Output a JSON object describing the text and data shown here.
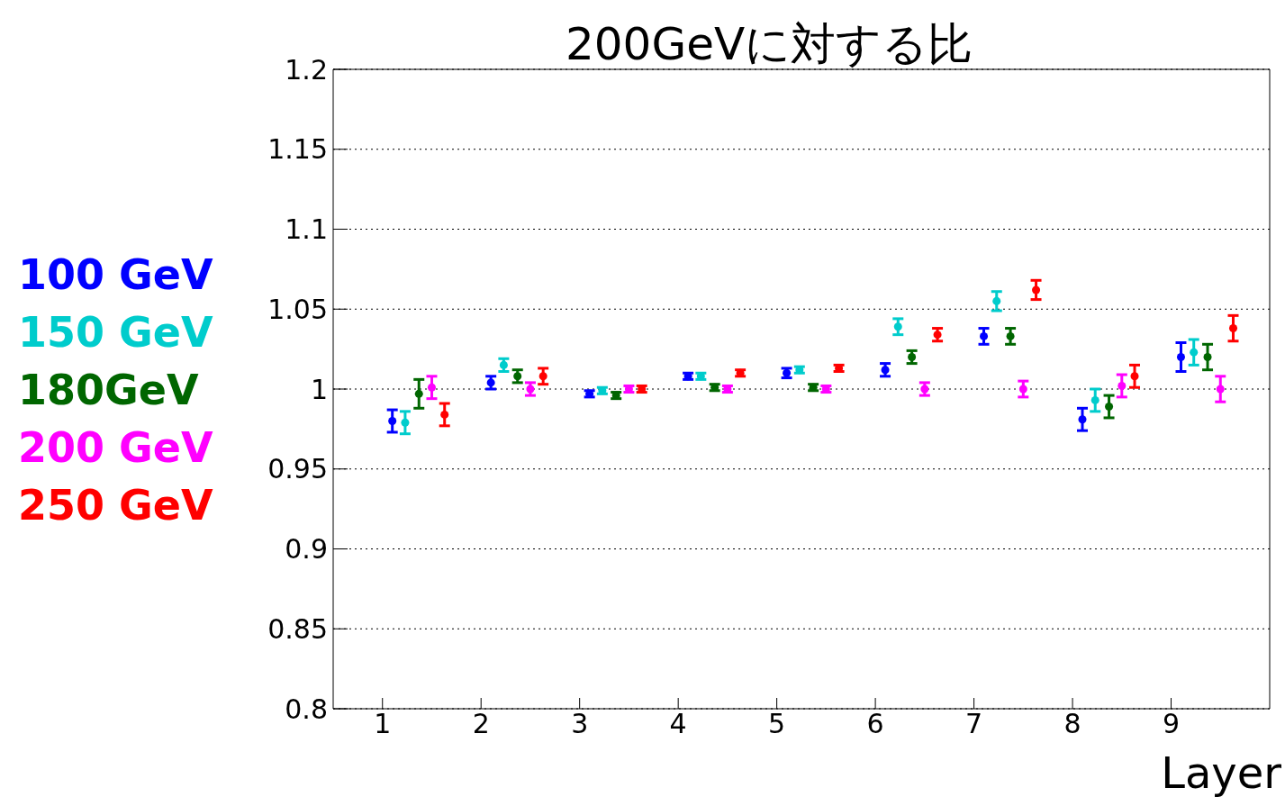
{
  "chart_data": {
    "type": "scatter",
    "title": "200GeVに対する比",
    "xlabel": "Layer",
    "xlim": [
      0.5,
      10
    ],
    "xticks": [
      1,
      2,
      3,
      4,
      5,
      6,
      7,
      8,
      9
    ],
    "ylim": [
      0.8,
      1.2
    ],
    "yticks": [
      0.8,
      0.85,
      0.9,
      0.95,
      1,
      1.05,
      1.1,
      1.15,
      1.2
    ],
    "grid": "y",
    "marker": "circle",
    "series": [
      {
        "name": "100 GeV",
        "color": "#0000ff",
        "x": [
          1.1,
          2.1,
          3.1,
          4.1,
          5.1,
          6.1,
          7.1,
          8.1,
          9.1
        ],
        "values": [
          0.98,
          1.004,
          0.997,
          1.008,
          1.01,
          1.012,
          1.033,
          0.981,
          1.02
        ],
        "errors": [
          0.007,
          0.004,
          0.002,
          0.002,
          0.003,
          0.004,
          0.005,
          0.007,
          0.009
        ]
      },
      {
        "name": "150 GeV",
        "color": "#00cccc",
        "x": [
          1.23,
          2.23,
          3.23,
          4.23,
          5.23,
          6.23,
          7.23,
          8.23,
          9.23
        ],
        "values": [
          0.979,
          1.015,
          0.999,
          1.008,
          1.012,
          1.039,
          1.055,
          0.993,
          1.023
        ],
        "errors": [
          0.007,
          0.004,
          0.002,
          0.002,
          0.002,
          0.005,
          0.006,
          0.007,
          0.008
        ]
      },
      {
        "name": "180GeV",
        "color": "#006600",
        "x": [
          1.37,
          2.37,
          3.37,
          4.37,
          5.37,
          6.37,
          7.37,
          8.37,
          9.37
        ],
        "values": [
          0.997,
          1.008,
          0.996,
          1.001,
          1.001,
          1.02,
          1.033,
          0.989,
          1.02
        ],
        "errors": [
          0.009,
          0.004,
          0.002,
          0.002,
          0.002,
          0.004,
          0.005,
          0.007,
          0.008
        ]
      },
      {
        "name": "200 GeV",
        "color": "#ff00ff",
        "x": [
          1.5,
          2.5,
          3.5,
          4.5,
          5.5,
          6.5,
          7.5,
          8.5,
          9.5
        ],
        "values": [
          1.001,
          1.0,
          1.0,
          1.0,
          1.0,
          1.0,
          1.0,
          1.002,
          1.0
        ],
        "errors": [
          0.007,
          0.004,
          0.002,
          0.002,
          0.002,
          0.004,
          0.005,
          0.007,
          0.008
        ]
      },
      {
        "name": "250 GeV",
        "color": "#ff0000",
        "x": [
          1.63,
          2.63,
          3.63,
          4.63,
          5.63,
          6.63,
          7.63,
          8.63,
          9.63
        ],
        "values": [
          0.984,
          1.008,
          1.0,
          1.01,
          1.013,
          1.034,
          1.062,
          1.008,
          1.038
        ],
        "errors": [
          0.007,
          0.005,
          0.002,
          0.002,
          0.002,
          0.004,
          0.006,
          0.007,
          0.008
        ]
      }
    ]
  }
}
